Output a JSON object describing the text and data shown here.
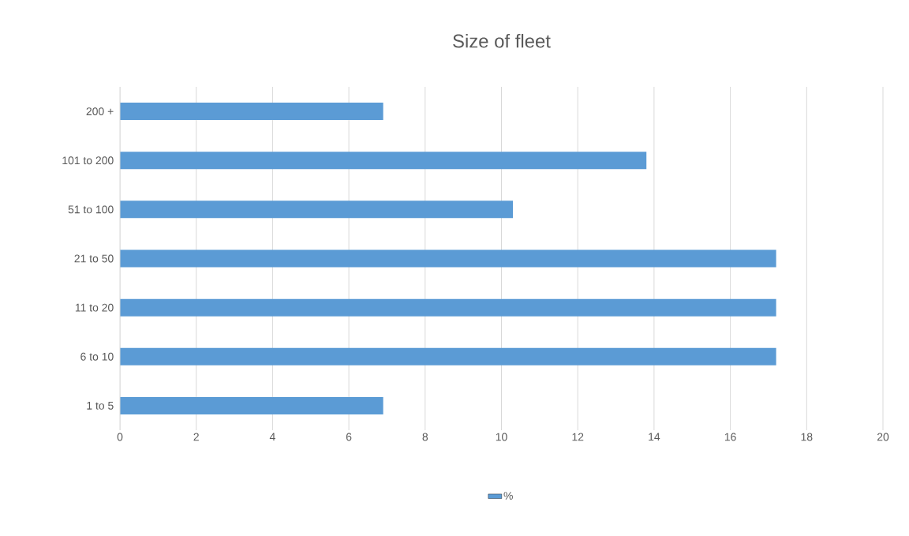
{
  "chart_data": {
    "type": "bar",
    "orientation": "horizontal",
    "title": "Size of fleet",
    "categories": [
      "200 +",
      "101 to 200",
      "51 to 100",
      "21 to 50",
      "11 to 20",
      "6 to 10",
      "1 to 5"
    ],
    "series": [
      {
        "name": "%",
        "color": "#5b9bd5",
        "values": [
          6.9,
          13.8,
          10.3,
          17.2,
          17.2,
          17.2,
          6.9
        ]
      }
    ],
    "xlim": [
      0,
      20
    ],
    "xticks": [
      0,
      2,
      4,
      6,
      8,
      10,
      12,
      14,
      16,
      18,
      20
    ],
    "grid": "x",
    "legend": "bottom"
  }
}
